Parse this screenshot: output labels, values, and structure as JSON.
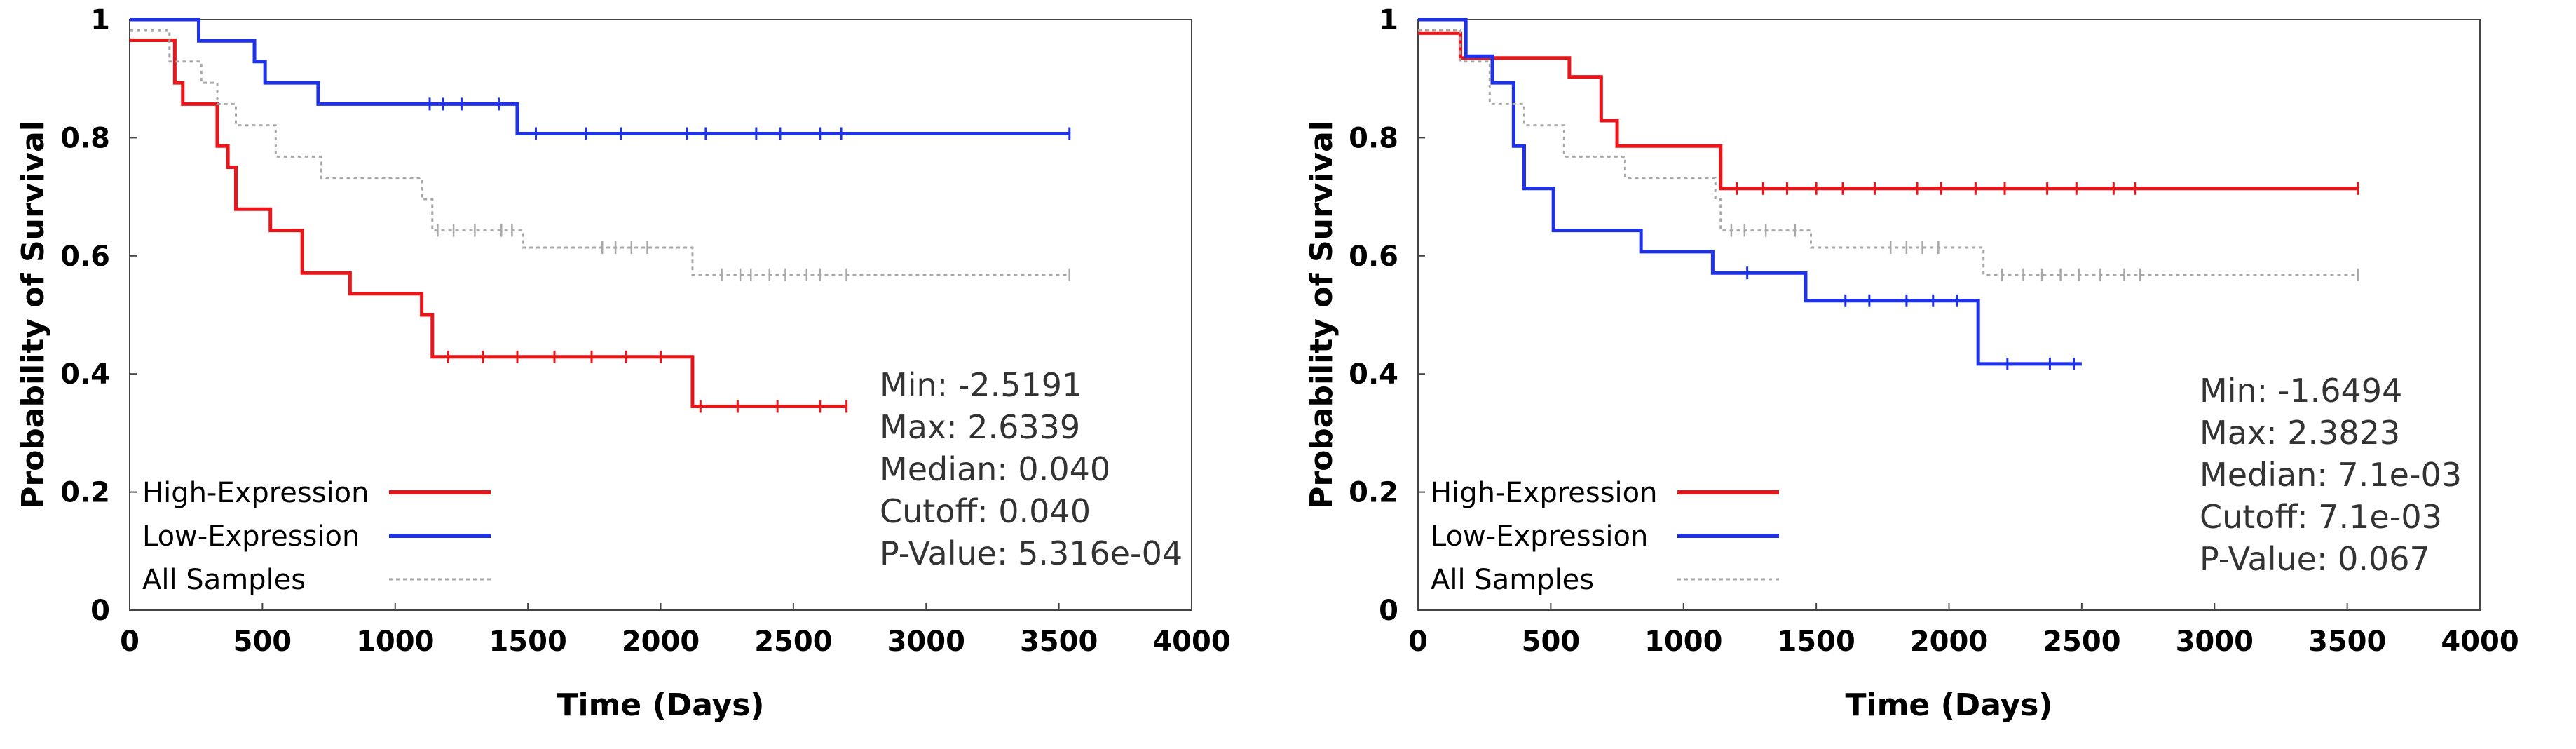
{
  "chart_data": [
    {
      "type": "line",
      "xlabel": "Time (Days)",
      "ylabel": "Probability of Survival",
      "xlim": [
        0,
        4000
      ],
      "ylim": [
        0,
        1
      ],
      "xticks": [
        "0",
        "500",
        "1000",
        "1500",
        "2000",
        "2500",
        "3000",
        "3500",
        "4000"
      ],
      "yticks": [
        "0",
        "0.2",
        "0.4",
        "0.6",
        "0.8",
        "1"
      ],
      "legend_position": "bottom-left",
      "series": [
        {
          "name": "High-Expression",
          "color": "#e8161b",
          "style": "solid",
          "x": [
            0,
            170,
            200,
            330,
            370,
            400,
            530,
            650,
            830,
            1100,
            1140,
            2120,
            2700
          ],
          "y": [
            0.965,
            0.893,
            0.857,
            0.786,
            0.75,
            0.679,
            0.643,
            0.571,
            0.536,
            0.5,
            0.429,
            0.345,
            0.345
          ],
          "censor_x": [
            1200,
            1330,
            1460,
            1600,
            1740,
            1870,
            2000,
            2150,
            2290,
            2440,
            2600,
            2700
          ],
          "censor_y": [
            0.429,
            0.429,
            0.429,
            0.429,
            0.429,
            0.429,
            0.429,
            0.345,
            0.345,
            0.345,
            0.345,
            0.345
          ]
        },
        {
          "name": "Low-Expression",
          "color": "#1f32e8",
          "style": "solid",
          "x": [
            0,
            260,
            470,
            510,
            710,
            1460,
            3540
          ],
          "y": [
            1.0,
            0.964,
            0.929,
            0.893,
            0.857,
            0.807,
            0.807
          ],
          "censor_x": [
            1130,
            1180,
            1250,
            1390,
            1530,
            1720,
            1850,
            2100,
            2170,
            2360,
            2450,
            2600,
            2680,
            3540
          ],
          "censor_y": [
            0.857,
            0.857,
            0.857,
            0.857,
            0.807,
            0.807,
            0.807,
            0.807,
            0.807,
            0.807,
            0.807,
            0.807,
            0.807,
            0.807
          ]
        },
        {
          "name": "All Samples",
          "color": "#a8a8a8",
          "style": "dotted",
          "x": [
            0,
            150,
            270,
            330,
            400,
            550,
            720,
            1100,
            1140,
            1480,
            2120,
            3540
          ],
          "y": [
            0.982,
            0.929,
            0.893,
            0.857,
            0.821,
            0.768,
            0.732,
            0.696,
            0.643,
            0.614,
            0.568,
            0.568
          ],
          "censor_x": [
            1160,
            1220,
            1300,
            1400,
            1440,
            1780,
            1830,
            1890,
            1950,
            2230,
            2300,
            2340,
            2410,
            2470,
            2550,
            2600,
            2700,
            3540
          ],
          "censor_y": [
            0.643,
            0.643,
            0.643,
            0.643,
            0.643,
            0.614,
            0.614,
            0.614,
            0.614,
            0.568,
            0.568,
            0.568,
            0.568,
            0.568,
            0.568,
            0.568,
            0.568,
            0.568
          ]
        }
      ],
      "annotations": [
        "Min: -2.5191",
        "Max: 2.6339",
        "Median: 0.040",
        "Cutoff: 0.040",
        "P-Value: 5.316e-04"
      ]
    },
    {
      "type": "line",
      "xlabel": "Time (Days)",
      "ylabel": "Probability of Survival",
      "xlim": [
        0,
        4000
      ],
      "ylim": [
        0,
        1
      ],
      "xticks": [
        "0",
        "500",
        "1000",
        "1500",
        "2000",
        "2500",
        "3000",
        "3500",
        "4000"
      ],
      "yticks": [
        "0",
        "0.2",
        "0.4",
        "0.6",
        "0.8",
        "1"
      ],
      "legend_position": "bottom-left",
      "series": [
        {
          "name": "High-Expression",
          "color": "#e8161b",
          "style": "solid",
          "x": [
            0,
            160,
            570,
            690,
            750,
            1140,
            3540
          ],
          "y": [
            0.977,
            0.935,
            0.903,
            0.829,
            0.786,
            0.714,
            0.714
          ],
          "censor_x": [
            1200,
            1300,
            1390,
            1500,
            1600,
            1720,
            1880,
            1970,
            2100,
            2210,
            2370,
            2480,
            2620,
            2700,
            3540
          ],
          "censor_y": [
            0.714,
            0.714,
            0.714,
            0.714,
            0.714,
            0.714,
            0.714,
            0.714,
            0.714,
            0.714,
            0.714,
            0.714,
            0.714,
            0.714,
            0.714
          ]
        },
        {
          "name": "Low-Expression",
          "color": "#1f32e8",
          "style": "solid",
          "x": [
            0,
            180,
            280,
            360,
            400,
            510,
            840,
            1110,
            1460,
            2110,
            2500
          ],
          "y": [
            1.0,
            0.938,
            0.893,
            0.786,
            0.714,
            0.643,
            0.607,
            0.571,
            0.524,
            0.417,
            0.417
          ],
          "censor_x": [
            1240,
            1610,
            1700,
            1840,
            1940,
            2030,
            2220,
            2380,
            2470
          ],
          "censor_y": [
            0.571,
            0.524,
            0.524,
            0.524,
            0.524,
            0.524,
            0.417,
            0.417,
            0.417
          ]
        },
        {
          "name": "All Samples",
          "color": "#a8a8a8",
          "style": "dotted",
          "x": [
            0,
            160,
            270,
            400,
            550,
            780,
            1120,
            1140,
            1480,
            2130,
            3540
          ],
          "y": [
            0.982,
            0.929,
            0.857,
            0.821,
            0.768,
            0.732,
            0.696,
            0.643,
            0.614,
            0.568,
            0.568
          ],
          "censor_x": [
            1180,
            1230,
            1310,
            1420,
            1780,
            1840,
            1900,
            1960,
            2200,
            2280,
            2350,
            2420,
            2490,
            2570,
            2660,
            2720,
            3540
          ],
          "censor_y": [
            0.643,
            0.643,
            0.643,
            0.643,
            0.614,
            0.614,
            0.614,
            0.614,
            0.568,
            0.568,
            0.568,
            0.568,
            0.568,
            0.568,
            0.568,
            0.568,
            0.568
          ]
        }
      ],
      "annotations": [
        "Min: -1.6494",
        "Max: 2.3823",
        "Median: 7.1e-03",
        "Cutoff: 7.1e-03",
        "P-Value: 0.067"
      ]
    }
  ]
}
